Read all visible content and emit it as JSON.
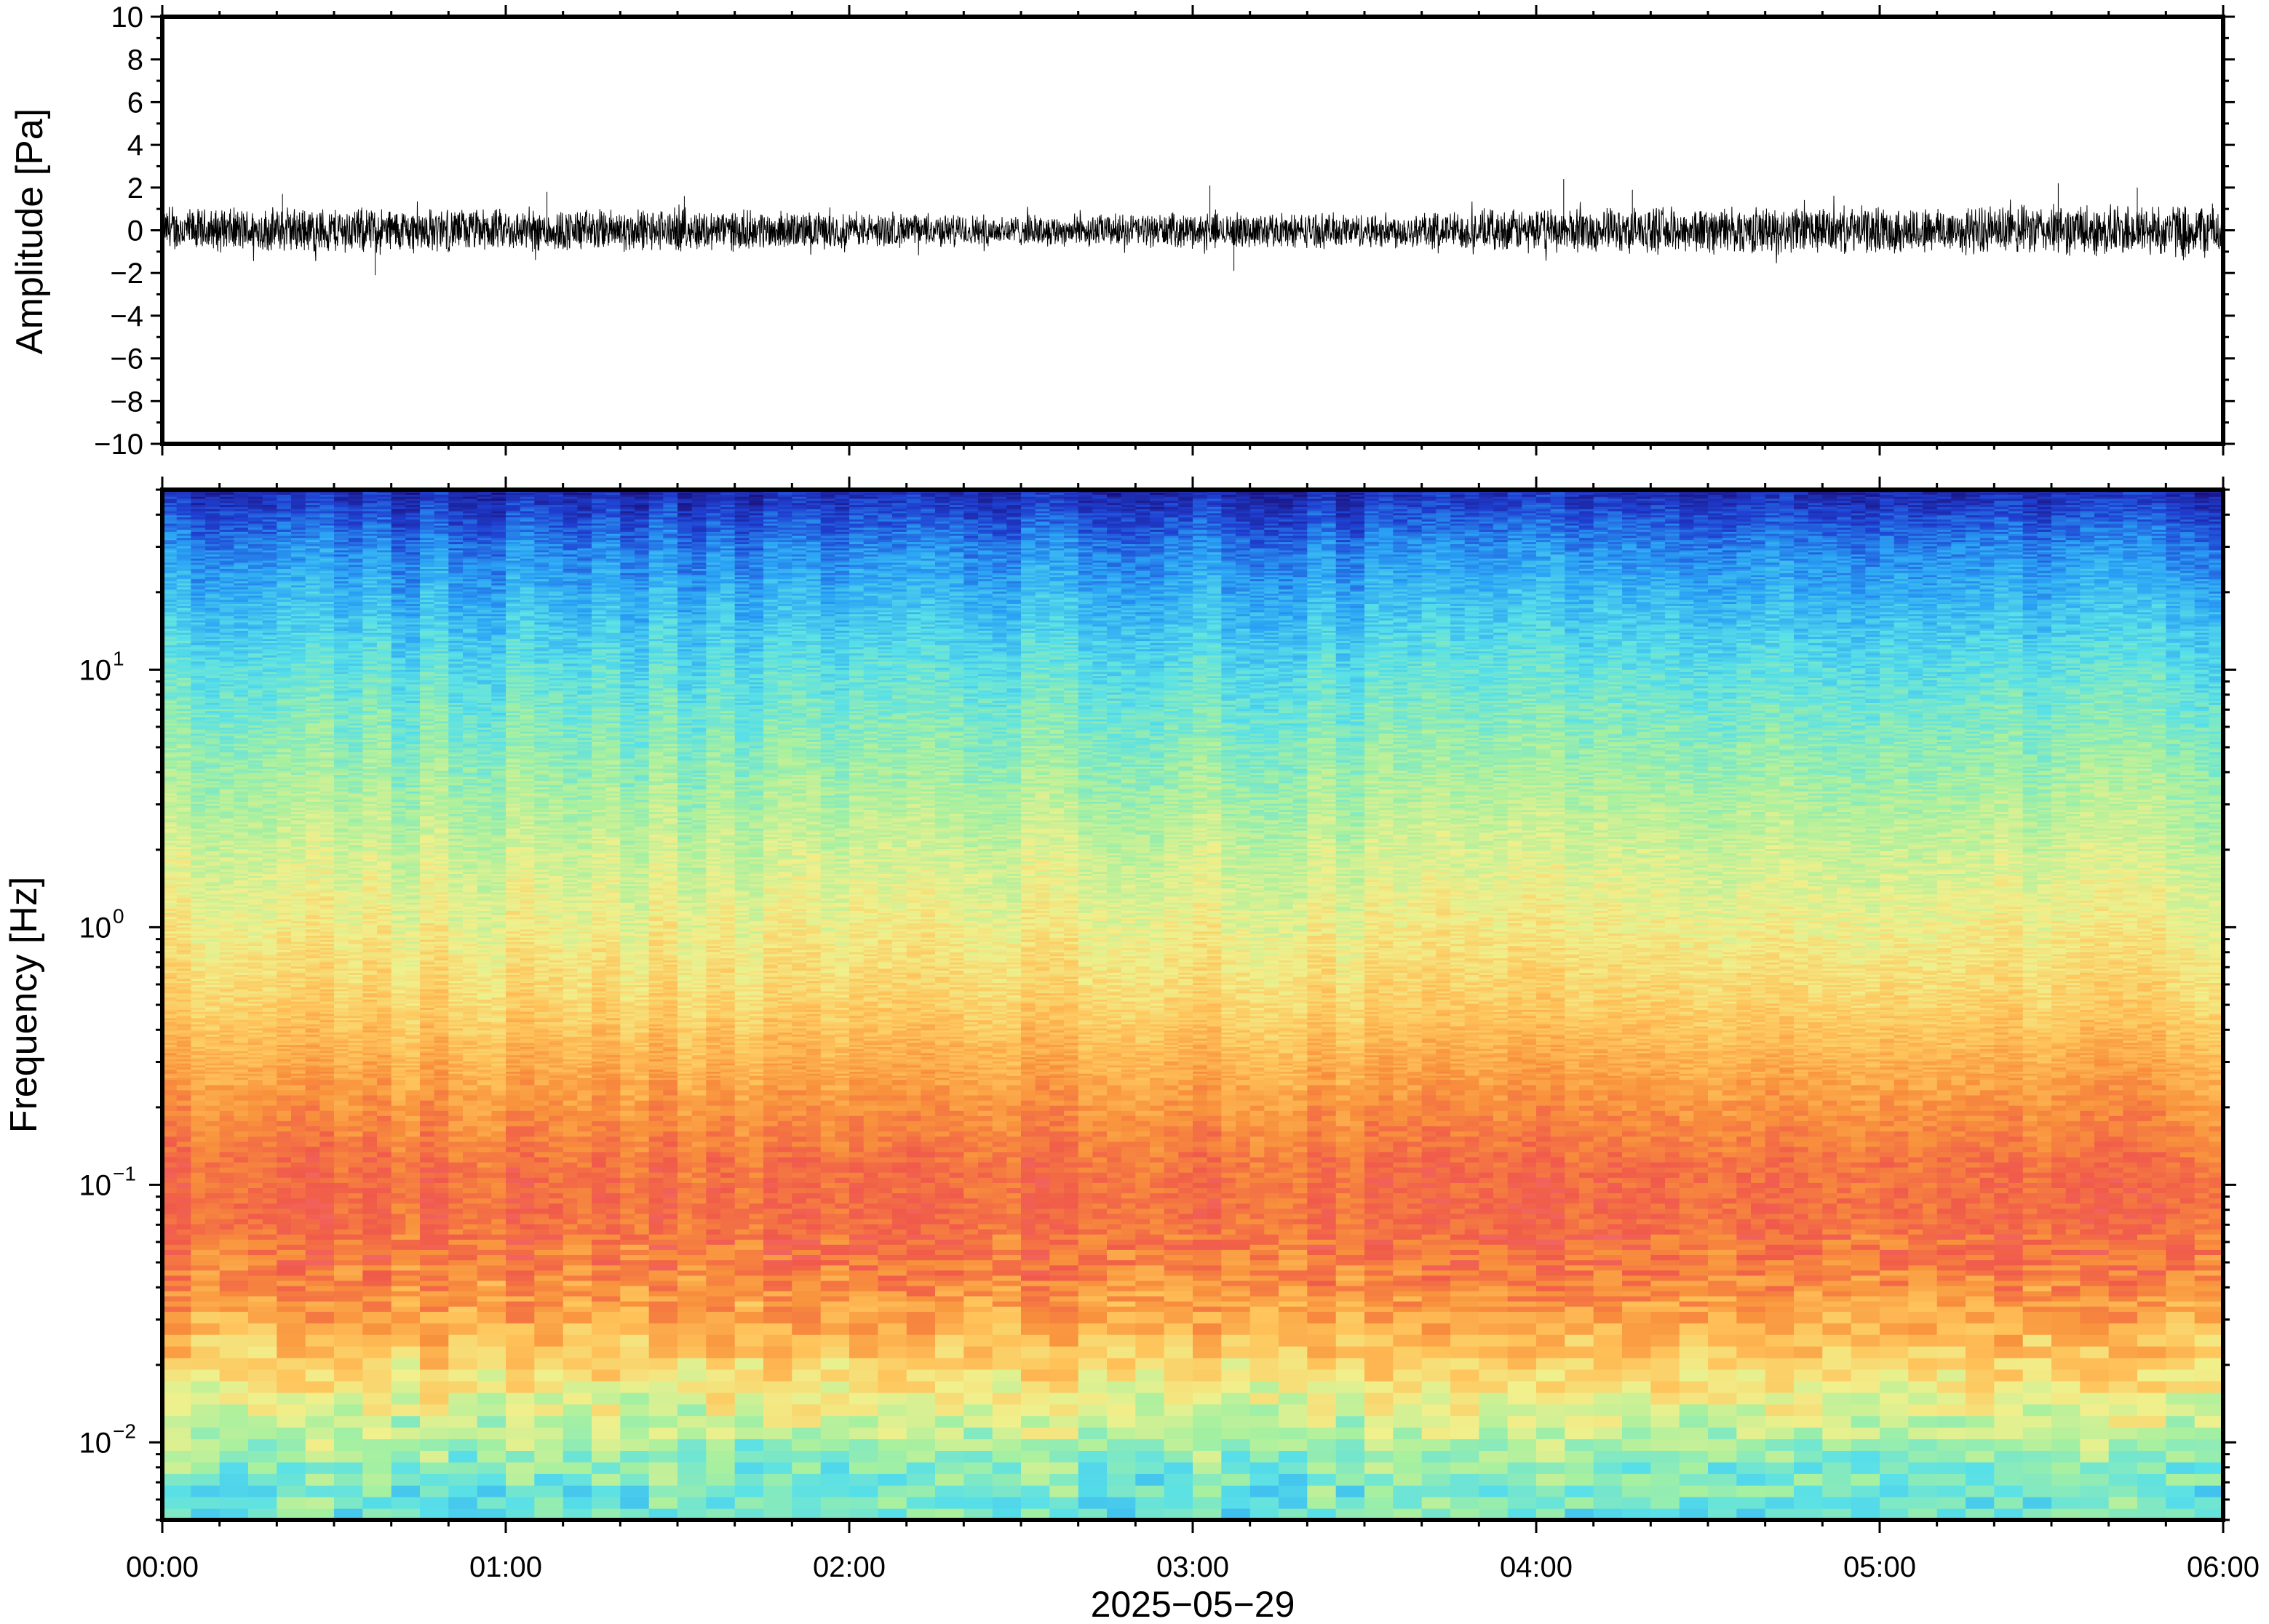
{
  "chart_data": [
    {
      "type": "line",
      "panel": "waveform",
      "ylabel": "Amplitude [Pa]",
      "ylim": [
        -10,
        10
      ],
      "yticks": [
        -10,
        -8,
        -6,
        -4,
        -2,
        0,
        2,
        4,
        6,
        8,
        10
      ],
      "ytick_labels": [
        "−10",
        "−8",
        "−6",
        "−4",
        "−2",
        "0",
        "2",
        "4",
        "6",
        "8",
        "10"
      ],
      "xlim": [
        "2025-05-29 00:00",
        "2025-05-29 06:00"
      ],
      "series": [
        {
          "color": "#000000",
          "envelope_hours": [
            0,
            0.5,
            1,
            1.5,
            2,
            2.5,
            3,
            3.5,
            4,
            4.5,
            5,
            5.5,
            6
          ],
          "envelope_abs_pa": [
            1.1,
            1.2,
            1.1,
            1.1,
            0.9,
            0.8,
            0.9,
            0.9,
            1.1,
            1.2,
            1.2,
            1.3,
            1.4
          ],
          "spike_hours": [
            0.35,
            0.62,
            1.12,
            1.52,
            3.05,
            3.12,
            4.08,
            4.28,
            5.52,
            5.75
          ],
          "spike_pa": [
            1.7,
            -2.1,
            1.8,
            1.6,
            2.1,
            -1.9,
            2.4,
            1.9,
            2.2,
            2.0
          ]
        }
      ]
    },
    {
      "type": "heatmap",
      "panel": "spectrogram",
      "ylabel": "Frequency [Hz]",
      "yscale": "log",
      "ylim": [
        0.005,
        50
      ],
      "yticks": [
        0.01,
        0.1,
        1,
        10
      ],
      "ytick_labels": [
        {
          "base": "10",
          "exp": "−2"
        },
        {
          "base": "10",
          "exp": "−1"
        },
        {
          "base": "10",
          "exp": "0"
        },
        {
          "base": "10",
          "exp": "1"
        }
      ],
      "xlim": [
        "2025-05-29 00:00",
        "2025-05-29 06:00"
      ],
      "xticks": [
        "00:00",
        "01:00",
        "02:00",
        "03:00",
        "04:00",
        "05:00",
        "06:00"
      ],
      "xlabel": "2025−05−29",
      "colormap_stops": [
        "#1a0f7a",
        "#1f3fd1",
        "#2aa2f5",
        "#58e0e8",
        "#a6f0a0",
        "#f0f08c",
        "#ffc35a",
        "#f8913c",
        "#f05a4a",
        "#f87a8c"
      ],
      "profile_freq_hz": [
        0.005,
        0.008,
        0.012,
        0.02,
        0.03,
        0.05,
        0.08,
        0.12,
        0.2,
        0.3,
        0.5,
        1,
        2,
        3,
        5,
        10,
        20,
        30,
        40,
        50
      ],
      "profile_level": [
        0.36,
        0.4,
        0.5,
        0.62,
        0.72,
        0.82,
        0.85,
        0.84,
        0.77,
        0.71,
        0.63,
        0.56,
        0.5,
        0.46,
        0.41,
        0.34,
        0.25,
        0.19,
        0.12,
        0.06
      ]
    }
  ]
}
